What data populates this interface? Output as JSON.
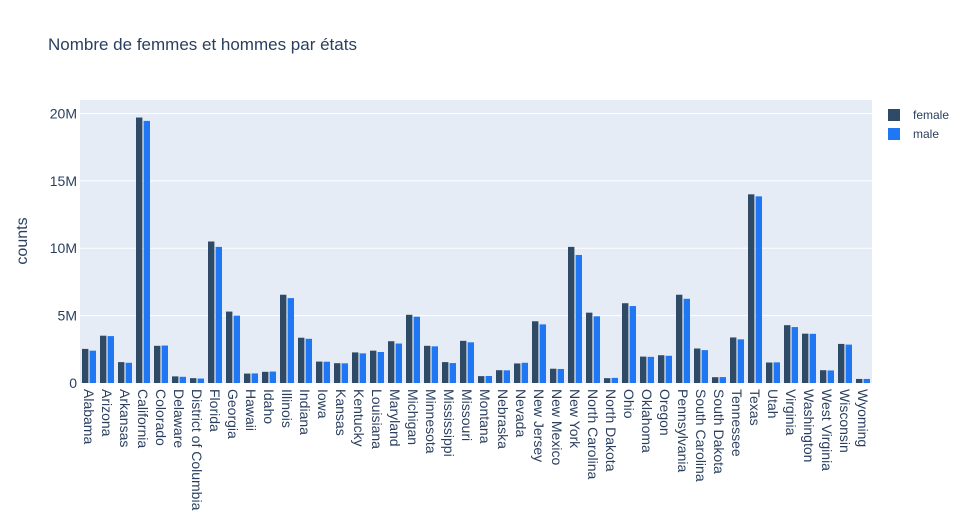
{
  "chart_data": {
    "type": "bar",
    "title": "Nombre de femmes et hommes par états",
    "xlabel": "",
    "ylabel": "counts",
    "ylim": [
      0,
      21000000
    ],
    "yticks": [
      {
        "value": 0,
        "label": "0"
      },
      {
        "value": 5000000,
        "label": "5M"
      },
      {
        "value": 10000000,
        "label": "10M"
      },
      {
        "value": 15000000,
        "label": "15M"
      },
      {
        "value": 20000000,
        "label": "20M"
      }
    ],
    "grid": true,
    "legend_position": "top-right",
    "categories": [
      "Alabama",
      "Arizona",
      "Arkansas",
      "California",
      "Colorado",
      "Delaware",
      "District of Columbia",
      "Florida",
      "Georgia",
      "Hawaii",
      "Idaho",
      "Illinois",
      "Indiana",
      "Iowa",
      "Kansas",
      "Kentucky",
      "Louisiana",
      "Maryland",
      "Michigan",
      "Minnesota",
      "Mississippi",
      "Missouri",
      "Montana",
      "Nebraska",
      "Nevada",
      "New Jersey",
      "New Mexico",
      "New York",
      "North Carolina",
      "North Dakota",
      "Ohio",
      "Oklahoma",
      "Oregon",
      "Pennsylvania",
      "South Carolina",
      "South Dakota",
      "Tennessee",
      "Texas",
      "Utah",
      "Virginia",
      "Washington",
      "West Virginia",
      "Wisconsin",
      "Wyoming"
    ],
    "series": [
      {
        "name": "female",
        "color": "#2f4a66",
        "values": [
          2530000,
          3510000,
          1550000,
          19700000,
          2760000,
          490000,
          360000,
          10500000,
          5300000,
          700000,
          830000,
          6550000,
          3360000,
          1590000,
          1470000,
          2270000,
          2400000,
          3100000,
          5060000,
          2760000,
          1550000,
          3130000,
          510000,
          950000,
          1450000,
          4580000,
          1060000,
          10100000,
          5220000,
          360000,
          5920000,
          1960000,
          2060000,
          6550000,
          2560000,
          430000,
          3380000,
          14000000,
          1520000,
          4290000,
          3660000,
          950000,
          2900000,
          300000
        ]
      },
      {
        "name": "male",
        "color": "#1f77f4",
        "values": [
          2400000,
          3480000,
          1500000,
          19450000,
          2780000,
          460000,
          330000,
          10100000,
          5000000,
          710000,
          850000,
          6300000,
          3280000,
          1580000,
          1460000,
          2200000,
          2300000,
          2930000,
          4920000,
          2720000,
          1480000,
          3020000,
          520000,
          940000,
          1500000,
          4350000,
          1040000,
          9500000,
          4950000,
          380000,
          5710000,
          1940000,
          2020000,
          6250000,
          2440000,
          440000,
          3240000,
          13850000,
          1530000,
          4150000,
          3650000,
          930000,
          2850000,
          300000
        ]
      }
    ]
  }
}
